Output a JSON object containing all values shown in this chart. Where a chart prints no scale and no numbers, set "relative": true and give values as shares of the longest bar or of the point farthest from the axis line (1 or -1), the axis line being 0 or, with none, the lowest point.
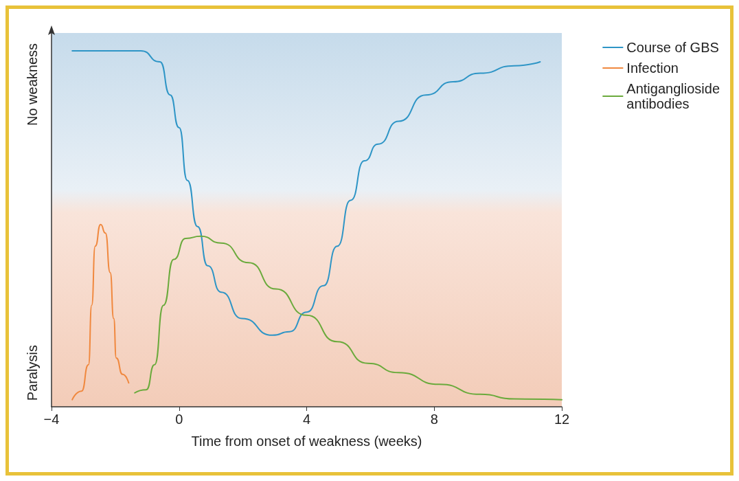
{
  "chart_data": {
    "type": "line",
    "relative": true,
    "xlabel": "Time from onset of weakness (weeks)",
    "xlim": [
      -4,
      12
    ],
    "xticks": [
      {
        "value": -4,
        "label": "−4"
      },
      0,
      4,
      8,
      12
    ],
    "annotations": [
      "No weakness",
      "Paralysis"
    ],
    "legend": "top right",
    "grid": false,
    "marker": "none",
    "line_style": "solid",
    "series": [
      {
        "name": "Course of GBS",
        "color": "#2e95c6",
        "x": [
          -3.35,
          -1.2,
          -0.6,
          -0.28,
          0,
          0.26,
          0.58,
          0.9,
          1.32,
          1.97,
          2.93,
          3.46,
          4,
          4.53,
          4.96,
          5.38,
          5.81,
          6.24,
          6.88,
          7.74,
          8.59,
          9.44,
          10.51,
          11.32
        ],
        "values": [
          1,
          1,
          0.969,
          0.876,
          0.784,
          0.636,
          0.506,
          0.396,
          0.322,
          0.248,
          0.201,
          0.211,
          0.266,
          0.34,
          0.451,
          0.58,
          0.691,
          0.738,
          0.802,
          0.876,
          0.913,
          0.937,
          0.958,
          0.969
        ]
      },
      {
        "name": "Infection",
        "color": "#f0883e",
        "x": [
          -3.35,
          -3.06,
          -2.84,
          -2.74,
          -2.63,
          -2.46,
          -2.31,
          -2.16,
          -2.05,
          -1.97,
          -1.77,
          -1.58
        ],
        "values": [
          0.02,
          0.044,
          0.118,
          0.285,
          0.451,
          0.512,
          0.488,
          0.377,
          0.248,
          0.137,
          0.091,
          0.067
        ]
      },
      {
        "name": "Antiganglioside\nantibodies",
        "color": "#6aaa3c",
        "x": [
          -1.39,
          -1.03,
          -0.77,
          -0.49,
          -0.17,
          0.21,
          0.68,
          1.32,
          2.18,
          3.03,
          4,
          4.96,
          5.92,
          6.88,
          8.16,
          9.44,
          10.51,
          12
        ],
        "values": [
          0.039,
          0.048,
          0.118,
          0.285,
          0.414,
          0.473,
          0.479,
          0.46,
          0.405,
          0.331,
          0.257,
          0.183,
          0.122,
          0.096,
          0.063,
          0.035,
          0.022,
          0.02
        ]
      }
    ]
  }
}
